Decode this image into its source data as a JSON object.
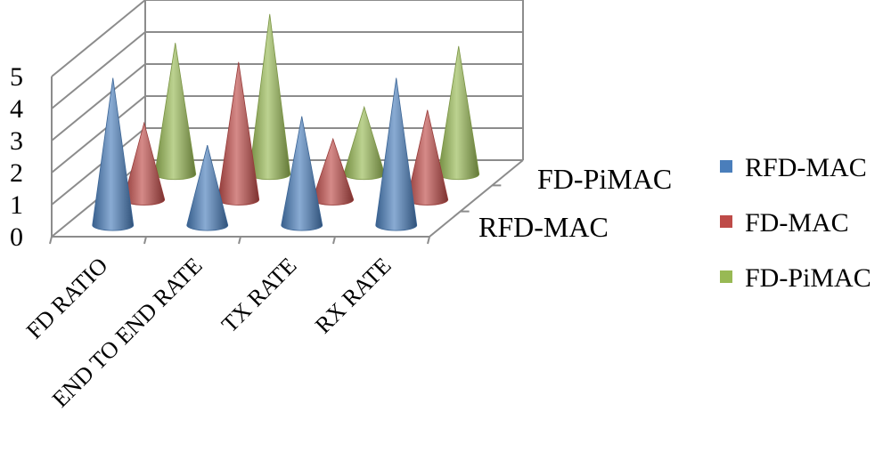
{
  "chart_data": {
    "type": "bar",
    "style": "3d-cone",
    "categories": [
      "FD RATIO",
      "END TO END RATE",
      "TX RATE",
      "RX RATE"
    ],
    "series": [
      {
        "name": "RFD-MAC",
        "color": "#4a7ebb",
        "values": [
          4.6,
          2.5,
          3.4,
          4.6
        ]
      },
      {
        "name": "FD-MAC",
        "color": "#be4b48",
        "values": [
          2.4,
          4.3,
          1.9,
          2.8
        ]
      },
      {
        "name": "FD-PiMAC",
        "color": "#98b954",
        "values": [
          4.1,
          5.0,
          2.1,
          4.0
        ]
      }
    ],
    "depth_labels": [
      "FD-PiMAC",
      "RFD-MAC"
    ],
    "y_ticks": [
      0,
      1,
      2,
      3,
      4,
      5
    ],
    "ylim": [
      0,
      5
    ],
    "grid": true,
    "legend": "right"
  }
}
